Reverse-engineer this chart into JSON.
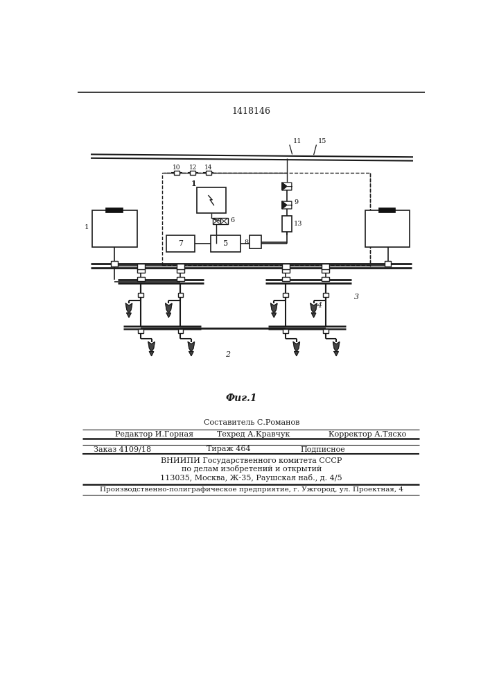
{
  "title": "1418146",
  "fig_label": "Фиг.1",
  "bg_color": "#ffffff",
  "lc": "#1a1a1a",
  "bottom_text": {
    "compiler": "Составитель С.Романов",
    "editor": "Редактор И.Горная",
    "techred": "Техред А.Кравчук",
    "corrector": "Корректор А.Тяско",
    "order": "Заказ 4109/18",
    "circulation": "Тираж 464",
    "subscription": "Подписное",
    "vniiipi_line1": "ВНИИПИ Государственного комитета СССР",
    "vniiipi_line2": "по делам изобретений и открытий",
    "vniiipi_line3": "113035, Москва, Ж-35, Раушская наб., д. 4/5",
    "production": "Производственно-полиграфическое предприятие, г. Ужгород, ул. Проектная, 4"
  }
}
